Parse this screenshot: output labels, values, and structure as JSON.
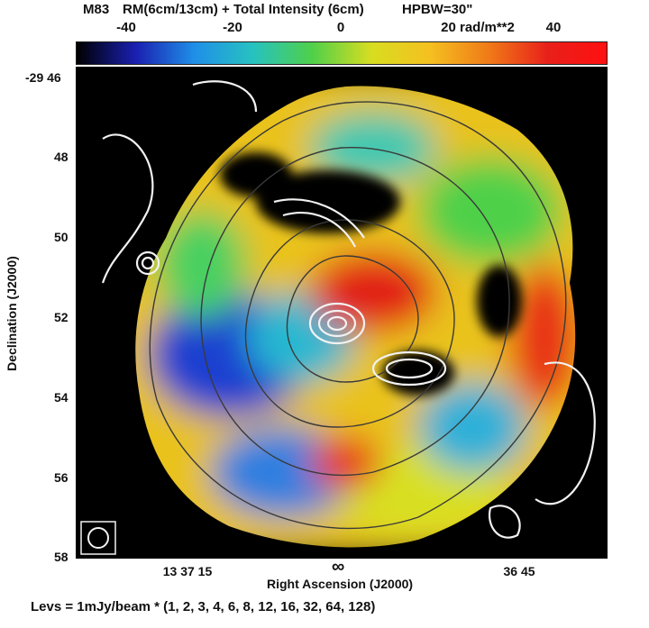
{
  "title": {
    "object": "M83",
    "map": "RM(6cm/13cm) + Total Intensity (6cm)",
    "beam": "HPBW=30\""
  },
  "colorbar": {
    "labels": [
      "-40",
      "-20",
      "0",
      "20 rad/m**2",
      "40"
    ],
    "values": [
      -40,
      -20,
      0,
      20,
      40
    ],
    "range": [
      -50,
      50
    ],
    "colors": [
      "#000000",
      "#1a1fb0",
      "#1f8fe8",
      "#27c2c0",
      "#4fd04a",
      "#d8dd20",
      "#f5c020",
      "#f07a18",
      "#e8201a",
      "#ff1010"
    ]
  },
  "chart_data": {
    "type": "heatmap",
    "title": "M83  RM(6cm/13cm) + Total Intensity (6cm)  HPBW=30\"",
    "xlabel": "Right Ascension (J2000)",
    "ylabel": "Declination (J2000)",
    "x_ticks": [
      "13 37 15",
      "36 45"
    ],
    "y_ticks": [
      "-29 46",
      "48",
      "50",
      "52",
      "54",
      "56",
      "58"
    ],
    "y_tick_values_arcmin": [
      46,
      48,
      50,
      52,
      54,
      56,
      58
    ],
    "y_range_arcmin": [
      46,
      58
    ],
    "colorbar_unit": "rad/m**2",
    "colorbar_range": [
      -50,
      50
    ],
    "contour_levels_mJy_per_beam": [
      1,
      2,
      3,
      4,
      6,
      8,
      12,
      16,
      32,
      64,
      128
    ],
    "contour_caption": "Levs = 1mJy/beam * (1, 2, 3, 4, 6, 8, 12, 16, 32, 64, 128)",
    "center_marker": "∞"
  }
}
